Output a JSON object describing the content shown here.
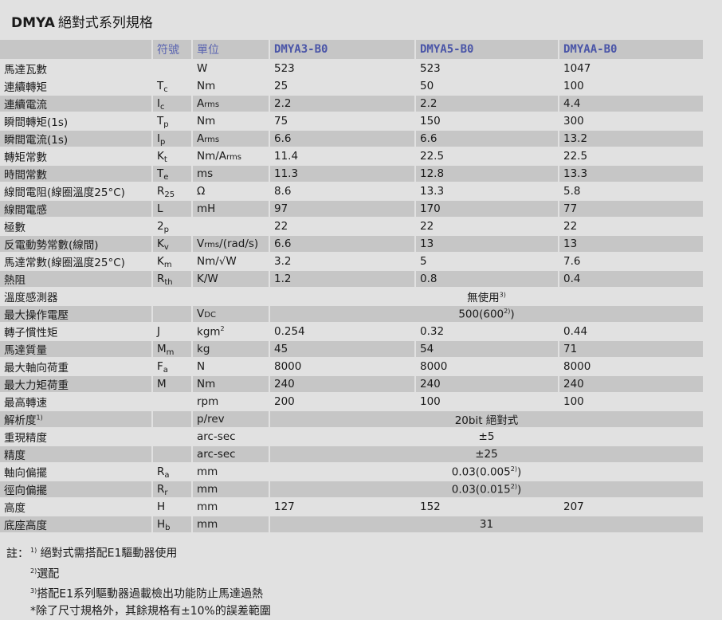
{
  "title": {
    "bold": "DMYA",
    "text": "絕對式系列規格"
  },
  "header": {
    "symbol": "符號",
    "unit": "單位",
    "models": [
      "DMYA3-B0",
      "DMYA5-B0",
      "DMYAA-B0"
    ]
  },
  "rows": [
    {
      "label": "馬達瓦數",
      "sym": "",
      "sym_sub": "",
      "unit": "W",
      "unit_small": "",
      "unit_rest": "",
      "values": [
        "523",
        "523",
        "1047"
      ]
    },
    {
      "label": "連續轉矩",
      "sym": "T",
      "sym_sub": "c",
      "unit": "Nm",
      "unit_small": "",
      "unit_rest": "",
      "values": [
        "25",
        "50",
        "100"
      ]
    },
    {
      "label": "連續電流",
      "sym": "I",
      "sym_sub": "c",
      "unit": "A",
      "unit_small": "rms",
      "unit_rest": "",
      "values": [
        "2.2",
        "2.2",
        "4.4"
      ]
    },
    {
      "label": "瞬間轉矩(1s)",
      "sym": "T",
      "sym_sub": "p",
      "unit": "Nm",
      "unit_small": "",
      "unit_rest": "",
      "values": [
        "75",
        "150",
        "300"
      ]
    },
    {
      "label": "瞬間電流(1s)",
      "sym": "I",
      "sym_sub": "p",
      "unit": "A",
      "unit_small": "rms",
      "unit_rest": "",
      "values": [
        "6.6",
        "6.6",
        "13.2"
      ]
    },
    {
      "label": "轉矩常數",
      "sym": "K",
      "sym_sub": "t",
      "unit": "Nm/A",
      "unit_small": "rms",
      "unit_rest": "",
      "values": [
        "11.4",
        "22.5",
        "22.5"
      ]
    },
    {
      "label": "時間常數",
      "sym": "T",
      "sym_sub": "e",
      "unit": "ms",
      "unit_small": "",
      "unit_rest": "",
      "values": [
        "11.3",
        "12.8",
        "13.3"
      ]
    },
    {
      "label": "線間電阻(線圈溫度25°C)",
      "sym": "R",
      "sym_sub": "25",
      "unit": "Ω",
      "unit_small": "",
      "unit_rest": "",
      "values": [
        "8.6",
        "13.3",
        "5.8"
      ]
    },
    {
      "label": "線間電感",
      "sym": "L",
      "sym_sub": "",
      "unit": "mH",
      "unit_small": "",
      "unit_rest": "",
      "values": [
        "97",
        "170",
        "77"
      ]
    },
    {
      "label": "極數",
      "sym": "2",
      "sym_sub": "p",
      "unit": "",
      "unit_small": "",
      "unit_rest": "",
      "values": [
        "22",
        "22",
        "22"
      ]
    },
    {
      "label": "反電動勢常數(線間)",
      "sym": "K",
      "sym_sub": "v",
      "unit": "V",
      "unit_small": "rms",
      "unit_rest": "/(rad/s)",
      "values": [
        "6.6",
        "13",
        "13"
      ]
    },
    {
      "label": "馬達常數(線圈溫度25°C)",
      "sym": "K",
      "sym_sub": "m",
      "unit": "Nm/√W",
      "unit_small": "",
      "unit_rest": "",
      "values": [
        "3.2",
        "5",
        "7.6"
      ]
    },
    {
      "label": "熱阻",
      "sym": "R",
      "sym_sub": "th",
      "unit": "K/W",
      "unit_small": "",
      "unit_rest": "",
      "values": [
        "1.2",
        "0.8",
        "0.4"
      ]
    },
    {
      "label": "溫度感測器",
      "sym": "",
      "sym_sub": "",
      "unit": "",
      "unit_small": "",
      "unit_rest": "",
      "merged": "無使用",
      "merged_sup": "3)"
    },
    {
      "label": "最大操作電壓",
      "sym": "",
      "sym_sub": "",
      "unit": "V",
      "unit_small": "DC",
      "unit_rest": "",
      "merged": "500(600",
      "merged_sup": "2)",
      "merged_tail": ")"
    },
    {
      "label": "轉子慣性矩",
      "sym": "J",
      "sym_sub": "",
      "unit": "kgm",
      "unit_small": "",
      "unit_rest": "",
      "unit_sup": "2",
      "values": [
        "0.254",
        "0.32",
        "0.44"
      ]
    },
    {
      "label": "馬達質量",
      "sym": "M",
      "sym_sub": "m",
      "unit": "kg",
      "unit_small": "",
      "unit_rest": "",
      "values": [
        "45",
        "54",
        "71"
      ]
    },
    {
      "label": "最大軸向荷重",
      "sym": "F",
      "sym_sub": "a",
      "unit": "N",
      "unit_small": "",
      "unit_rest": "",
      "values": [
        "8000",
        "8000",
        "8000"
      ]
    },
    {
      "label": "最大力矩荷重",
      "sym": "M",
      "sym_sub": "",
      "unit": "Nm",
      "unit_small": "",
      "unit_rest": "",
      "values": [
        "240",
        "240",
        "240"
      ]
    },
    {
      "label": "最高轉速",
      "sym": "",
      "sym_sub": "",
      "unit": "rpm",
      "unit_small": "",
      "unit_rest": "",
      "values": [
        "200",
        "100",
        "100"
      ]
    },
    {
      "label": "解析度",
      "label_sup": "1)",
      "sym": "",
      "sym_sub": "",
      "unit": "p/rev",
      "unit_small": "",
      "unit_rest": "",
      "merged": "20bit 絕對式"
    },
    {
      "label": "重現精度",
      "sym": "",
      "sym_sub": "",
      "unit": "arc-sec",
      "unit_small": "",
      "unit_rest": "",
      "merged": "±5"
    },
    {
      "label": "精度",
      "sym": "",
      "sym_sub": "",
      "unit": "arc-sec",
      "unit_small": "",
      "unit_rest": "",
      "merged": "±25"
    },
    {
      "label": "軸向偏擺",
      "sym": "R",
      "sym_sub": "a",
      "unit": "mm",
      "unit_small": "",
      "unit_rest": "",
      "merged": "0.03(0.005",
      "merged_sup": "2)",
      "merged_tail": ")"
    },
    {
      "label": "徑向偏擺",
      "sym": "R",
      "sym_sub": "r",
      "unit": "mm",
      "unit_small": "",
      "unit_rest": "",
      "merged": "0.03(0.015",
      "merged_sup": "2)",
      "merged_tail": ")"
    },
    {
      "label": "高度",
      "sym": "H",
      "sym_sub": "",
      "unit": "mm",
      "unit_small": "",
      "unit_rest": "",
      "values": [
        "127",
        "152",
        "207"
      ]
    },
    {
      "label": "底座高度",
      "sym": "H",
      "sym_sub": "b",
      "unit": "mm",
      "unit_small": "",
      "unit_rest": "",
      "merged": "31"
    }
  ],
  "notes": {
    "prefix": "註：",
    "items": [
      {
        "sup": "1)",
        "text": "絕對式需搭配E1驅動器使用"
      },
      {
        "sup": "2)",
        "text": "選配"
      },
      {
        "sup": "3)",
        "text": "搭配E1系列驅動器過載檢出功能防止馬達過熱"
      }
    ],
    "footer": "*除了尺寸規格外，其餘規格有±10%的誤差範圍"
  },
  "colors": {
    "header_text": "#4a55a8",
    "dark_row": "#c6c6c6",
    "light_row": "#e1e1e1"
  }
}
